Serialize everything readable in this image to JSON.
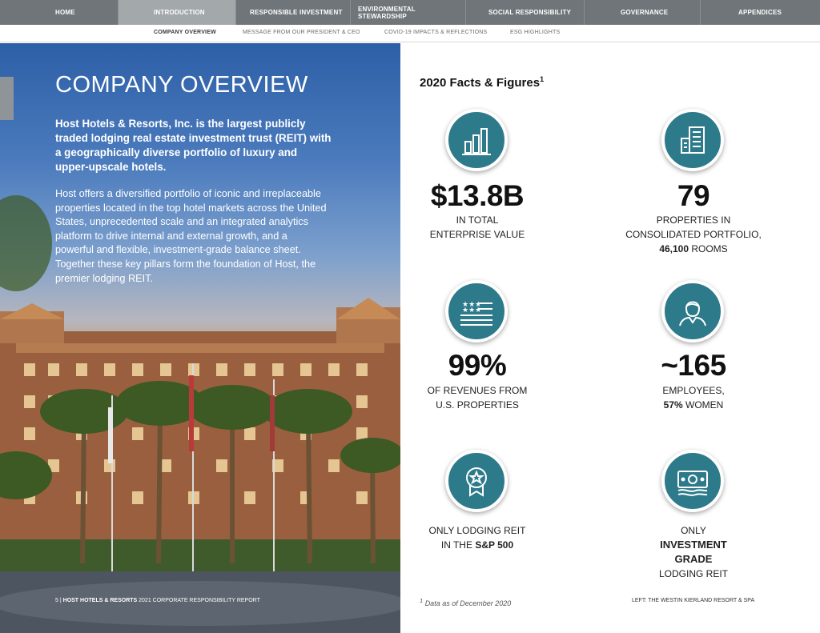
{
  "topnav": {
    "tabs": [
      {
        "label": "HOME"
      },
      {
        "label": "INTRODUCTION"
      },
      {
        "label": "RESPONSIBLE INVESTMENT"
      },
      {
        "label": "ENVIRONMENTAL STEWARDSHIP"
      },
      {
        "label": "SOCIAL RESPONSIBILITY"
      },
      {
        "label": "GOVERNANCE"
      },
      {
        "label": "APPENDICES"
      }
    ]
  },
  "subnav": {
    "items": [
      {
        "label": "COMPANY OVERVIEW"
      },
      {
        "label": "MESSAGE FROM OUR PRESIDENT & CEO"
      },
      {
        "label": "COVID-19 IMPACTS & REFLECTIONS"
      },
      {
        "label": "ESG HIGHLIGHTS"
      }
    ]
  },
  "left": {
    "title": "COMPANY OVERVIEW",
    "lead": "Host Hotels & Resorts, Inc. is the largest publicly traded lodging real estate investment trust (REIT) with a geographically diverse portfolio of luxury and upper-upscale hotels.",
    "body": "Host offers a diversified portfolio of iconic and irreplaceable properties located in the top hotel markets across the United States, unprecedented scale and an integrated analytics platform to drive internal and external growth, and a powerful and flexible, investment-grade balance sheet. Together these key pillars form the foundation of Host, the premier lodging REIT.",
    "footer_page": "5",
    "footer_sep": "|",
    "footer_brand": "HOST HOTELS & RESORTS",
    "footer_report": "2021 CORPORATE RESPONSIBILITY REPORT"
  },
  "facts": {
    "title": "2020 Facts & Figures",
    "title_sup": "1",
    "items": [
      {
        "icon": "bar-chart-icon",
        "value": "$13.8B",
        "line1": "IN TOTAL",
        "line2": "ENTERPRISE VALUE"
      },
      {
        "icon": "buildings-icon",
        "value": "79",
        "line1": "PROPERTIES IN",
        "line2": "CONSOLIDATED PORTFOLIO,",
        "line3_bold": "46,100",
        "line3_rest": " ROOMS"
      },
      {
        "icon": "us-flag-icon",
        "value": "99%",
        "line1": "OF REVENUES FROM",
        "line2": "U.S. PROPERTIES"
      },
      {
        "icon": "woman-employee-icon",
        "value": "~165",
        "line1": "EMPLOYEES,",
        "line2_bold": "57%",
        "line2_rest": " WOMEN"
      },
      {
        "icon": "award-ribbon-icon",
        "line1": "ONLY LODGING REIT",
        "line2_pre": "IN THE ",
        "line2_bold": "S&P 500"
      },
      {
        "icon": "money-bill-icon",
        "line1": "ONLY",
        "line2_bold": "INVESTMENT",
        "line3_bold": "GRADE",
        "line4": "LODGING REIT"
      }
    ],
    "footnote_sup": "1",
    "footnote": "Data as of December 2020",
    "caption": "LEFT: THE WESTIN KIERLAND RESORT & SPA"
  }
}
